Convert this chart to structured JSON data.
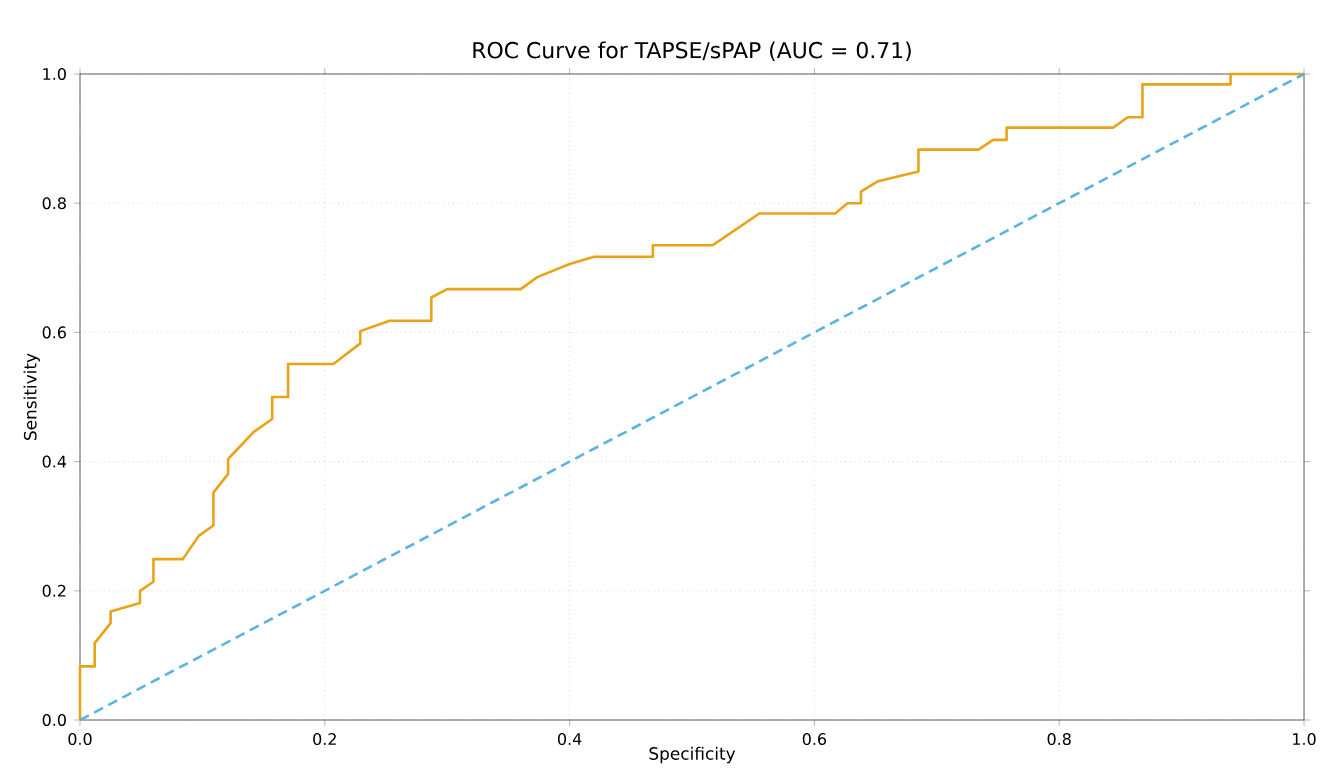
{
  "chart_data": {
    "type": "line",
    "title": "ROC Curve for TAPSE/sPAP (AUC = 0.71)",
    "xlabel": "Specificity",
    "ylabel": "Sensitivity",
    "series": [
      {
        "color": "#e8a317",
        "line_style": "solid",
        "x": [
          0,
          0,
          0.012,
          0.012,
          0.025,
          0.025,
          0.049,
          0.049,
          0.06,
          0.06,
          0.084,
          0.097,
          0.109,
          0.109,
          0.121,
          0.121,
          0.142,
          0.157,
          0.157,
          0.17,
          0.17,
          0.207,
          0.229,
          0.229,
          0.253,
          0.287,
          0.287,
          0.3,
          0.36,
          0.374,
          0.4,
          0.42,
          0.468,
          0.468,
          0.517,
          0.555,
          0.617,
          0.627,
          0.638,
          0.638,
          0.652,
          0.685,
          0.685,
          0.734,
          0.746,
          0.757,
          0.757,
          0.844,
          0.856,
          0.868,
          0.868,
          0.94,
          0.94,
          1
        ],
        "values": [
          0,
          0.083,
          0.083,
          0.119,
          0.15,
          0.168,
          0.181,
          0.2,
          0.214,
          0.249,
          0.249,
          0.285,
          0.301,
          0.352,
          0.381,
          0.404,
          0.446,
          0.466,
          0.5,
          0.5,
          0.551,
          0.551,
          0.583,
          0.602,
          0.618,
          0.618,
          0.654,
          0.667,
          0.667,
          0.686,
          0.706,
          0.717,
          0.717,
          0.735,
          0.735,
          0.784,
          0.784,
          0.8,
          0.8,
          0.818,
          0.834,
          0.849,
          0.883,
          0.883,
          0.898,
          0.898,
          0.917,
          0.917,
          0.933,
          0.933,
          0.984,
          0.984,
          1,
          1
        ]
      },
      {
        "color": "#5ab4e0",
        "line_style": "dashed",
        "x": [
          0,
          1
        ],
        "values": [
          0,
          1
        ]
      }
    ],
    "xlim": [
      0,
      1
    ],
    "ylim": [
      0,
      1
    ],
    "xticks": [
      {
        "value": 0,
        "label": "0.0"
      },
      0.2,
      0.4,
      0.6,
      0.8,
      {
        "value": 1,
        "label": "1.0"
      }
    ],
    "yticks": [
      {
        "value": 0,
        "label": "0.0"
      },
      0.2,
      0.4,
      0.6,
      0.8,
      {
        "value": 1,
        "label": "1.0"
      }
    ],
    "grid": true,
    "marker": "none"
  }
}
